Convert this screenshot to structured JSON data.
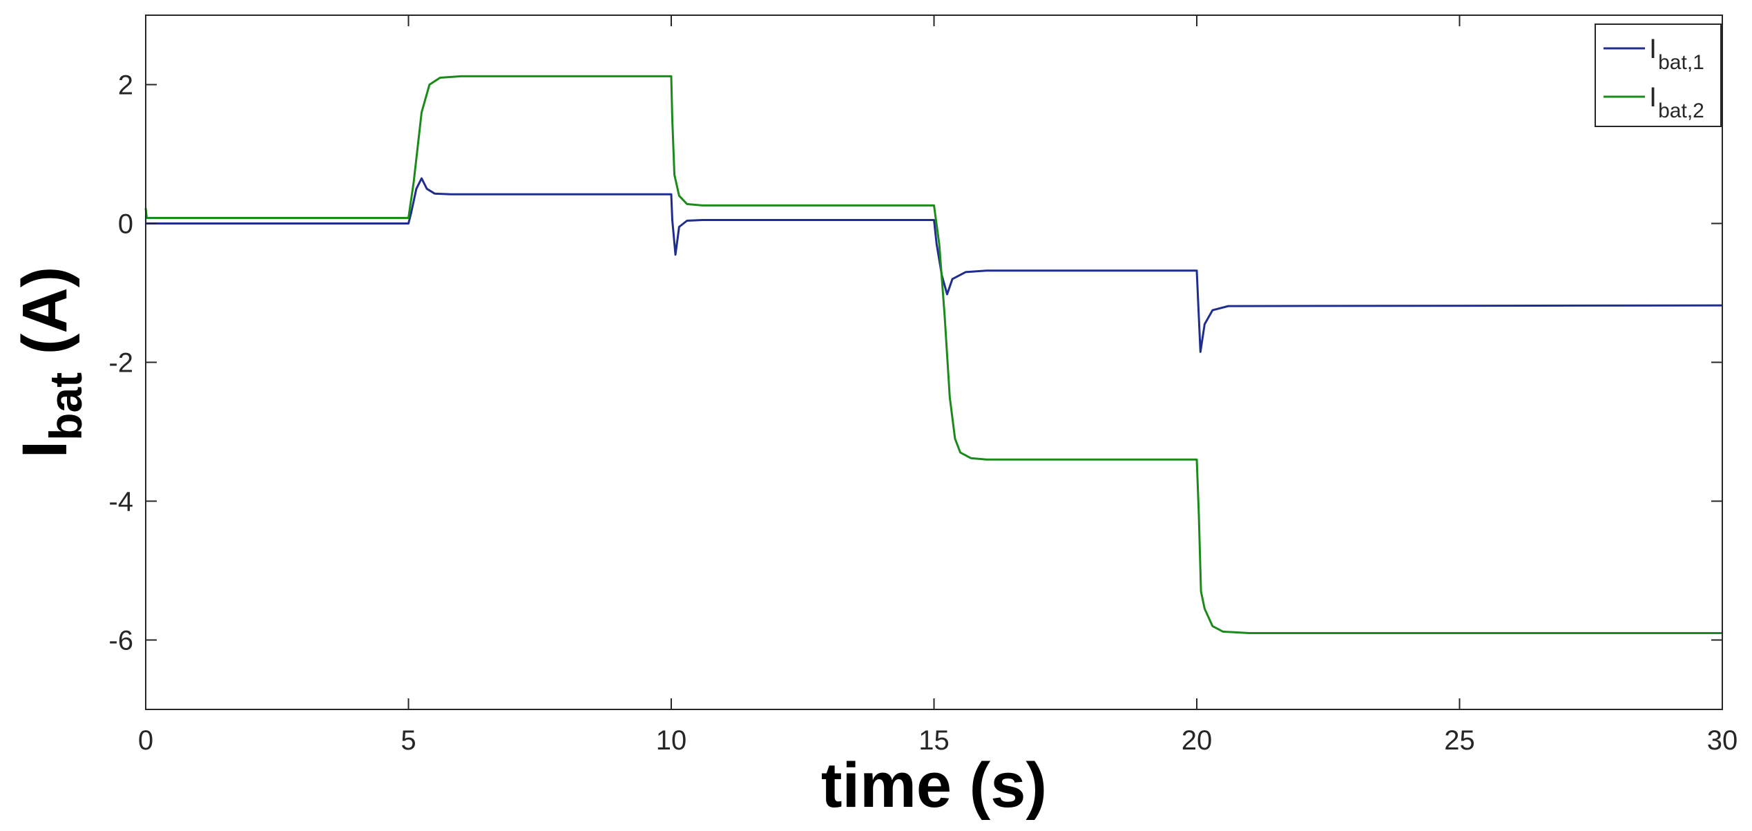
{
  "chart_data": {
    "type": "line",
    "xlabel": "time (s)",
    "ylabel": {
      "main": "I",
      "sub": "bat",
      "unit": "(A)"
    },
    "xlim": [
      0,
      30
    ],
    "ylim": [
      -7,
      3
    ],
    "xticks": [
      0,
      5,
      10,
      15,
      20,
      25,
      30
    ],
    "yticks": [
      2,
      0,
      -2,
      -4,
      -6
    ],
    "xtick_labels": [
      "0",
      "5",
      "10",
      "15",
      "20",
      "25",
      "30"
    ],
    "ytick_labels": [
      "2",
      "0",
      "-2",
      "-4",
      "-6"
    ],
    "grid": false,
    "legend_position": "top-right",
    "series": [
      {
        "name": "I",
        "name_sub": "bat,1",
        "color": "#1f2d8f",
        "points": [
          [
            0,
            0.0
          ],
          [
            5.0,
            0.0
          ],
          [
            5.05,
            0.15
          ],
          [
            5.15,
            0.5
          ],
          [
            5.25,
            0.65
          ],
          [
            5.35,
            0.5
          ],
          [
            5.5,
            0.43
          ],
          [
            5.8,
            0.42
          ],
          [
            10.0,
            0.42
          ],
          [
            10.02,
            0.05
          ],
          [
            10.08,
            -0.45
          ],
          [
            10.15,
            -0.05
          ],
          [
            10.3,
            0.04
          ],
          [
            10.6,
            0.05
          ],
          [
            15.0,
            0.05
          ],
          [
            15.05,
            -0.3
          ],
          [
            15.15,
            -0.75
          ],
          [
            15.25,
            -1.02
          ],
          [
            15.35,
            -0.8
          ],
          [
            15.6,
            -0.7
          ],
          [
            16.0,
            -0.68
          ],
          [
            20.0,
            -0.68
          ],
          [
            20.03,
            -1.2
          ],
          [
            20.07,
            -1.85
          ],
          [
            20.15,
            -1.45
          ],
          [
            20.3,
            -1.25
          ],
          [
            20.6,
            -1.19
          ],
          [
            30.0,
            -1.18
          ]
        ]
      },
      {
        "name": "I",
        "name_sub": "bat,2",
        "color": "#1a8a1a",
        "points": [
          [
            0,
            0.22
          ],
          [
            0.02,
            0.08
          ],
          [
            5.0,
            0.08
          ],
          [
            5.1,
            0.6
          ],
          [
            5.25,
            1.6
          ],
          [
            5.4,
            2.0
          ],
          [
            5.6,
            2.1
          ],
          [
            6.0,
            2.12
          ],
          [
            10.0,
            2.12
          ],
          [
            10.02,
            1.5
          ],
          [
            10.06,
            0.7
          ],
          [
            10.15,
            0.4
          ],
          [
            10.3,
            0.28
          ],
          [
            10.6,
            0.26
          ],
          [
            15.0,
            0.26
          ],
          [
            15.1,
            -0.3
          ],
          [
            15.2,
            -1.3
          ],
          [
            15.3,
            -2.5
          ],
          [
            15.4,
            -3.1
          ],
          [
            15.5,
            -3.3
          ],
          [
            15.7,
            -3.38
          ],
          [
            16.0,
            -3.4
          ],
          [
            20.0,
            -3.4
          ],
          [
            20.04,
            -4.2
          ],
          [
            20.08,
            -5.3
          ],
          [
            20.15,
            -5.55
          ],
          [
            20.3,
            -5.8
          ],
          [
            20.5,
            -5.88
          ],
          [
            21.0,
            -5.9
          ],
          [
            30.0,
            -5.9
          ]
        ]
      }
    ]
  }
}
